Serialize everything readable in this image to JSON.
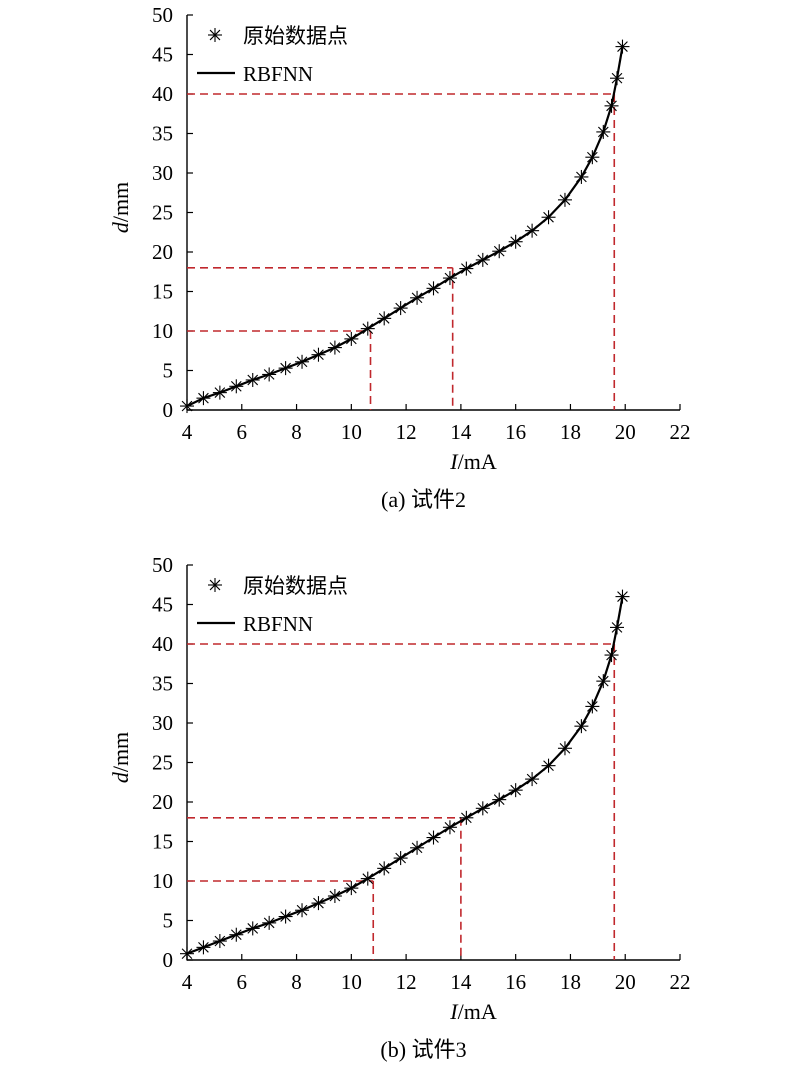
{
  "chart_data": [
    {
      "type": "line",
      "caption": "(a) 试件2",
      "xlabel": {
        "var": "I",
        "unit": "/mA"
      },
      "ylabel": {
        "var": "d",
        "unit": "/mm"
      },
      "xlim": [
        4,
        22
      ],
      "ylim": [
        0,
        50
      ],
      "xticks": [
        4,
        6,
        8,
        10,
        12,
        14,
        16,
        18,
        20,
        22
      ],
      "yticks": [
        0,
        5,
        10,
        15,
        20,
        25,
        30,
        35,
        40,
        45,
        50
      ],
      "legend": {
        "position": "top-left",
        "entries": [
          "原始数据点",
          "RBFNN"
        ]
      },
      "series": [
        {
          "name": "原始数据点",
          "marker": "asterisk",
          "color": "#000000",
          "x": [
            4.0,
            4.6,
            5.2,
            5.8,
            6.4,
            7.0,
            7.6,
            8.2,
            8.8,
            9.4,
            10.0,
            10.6,
            11.2,
            11.8,
            12.4,
            13.0,
            13.6,
            14.2,
            14.8,
            15.4,
            16.0,
            16.6,
            17.2,
            17.8,
            18.4,
            18.8,
            19.2,
            19.5,
            19.7,
            19.9
          ],
          "y": [
            0.5,
            1.5,
            2.2,
            3.0,
            3.8,
            4.5,
            5.3,
            6.1,
            7.0,
            7.9,
            9.0,
            10.3,
            11.6,
            12.9,
            14.2,
            15.4,
            16.7,
            17.9,
            19.0,
            20.1,
            21.3,
            22.7,
            24.4,
            26.6,
            29.5,
            32.0,
            35.2,
            38.5,
            42.0,
            46.0
          ]
        },
        {
          "name": "RBFNN",
          "marker": "none",
          "color": "#000000",
          "x": [
            4.0,
            4.6,
            5.2,
            5.8,
            6.4,
            7.0,
            7.6,
            8.2,
            8.8,
            9.4,
            10.0,
            10.6,
            11.2,
            11.8,
            12.4,
            13.0,
            13.6,
            14.2,
            14.8,
            15.4,
            16.0,
            16.6,
            17.2,
            17.8,
            18.4,
            18.8,
            19.2,
            19.5,
            19.7,
            19.9
          ],
          "y": [
            0.5,
            1.5,
            2.2,
            3.0,
            3.8,
            4.5,
            5.3,
            6.1,
            7.0,
            7.9,
            9.0,
            10.3,
            11.6,
            12.9,
            14.2,
            15.4,
            16.7,
            17.9,
            19.0,
            20.1,
            21.3,
            22.7,
            24.4,
            26.6,
            29.5,
            32.0,
            35.2,
            38.5,
            42.0,
            46.0
          ]
        }
      ],
      "annotations": [
        {
          "type": "dashed-guide",
          "color": "#c0282d",
          "x": 10.7,
          "y": 10
        },
        {
          "type": "dashed-guide",
          "color": "#c0282d",
          "x": 13.7,
          "y": 18
        },
        {
          "type": "dashed-guide",
          "color": "#c0282d",
          "x": 19.6,
          "y": 40
        }
      ]
    },
    {
      "type": "line",
      "caption": "(b) 试件3",
      "xlabel": {
        "var": "I",
        "unit": "/mA"
      },
      "ylabel": {
        "var": "d",
        "unit": "/mm"
      },
      "xlim": [
        4,
        22
      ],
      "ylim": [
        0,
        50
      ],
      "xticks": [
        4,
        6,
        8,
        10,
        12,
        14,
        16,
        18,
        20,
        22
      ],
      "yticks": [
        0,
        5,
        10,
        15,
        20,
        25,
        30,
        35,
        40,
        45,
        50
      ],
      "legend": {
        "position": "top-left",
        "entries": [
          "原始数据点",
          "RBFNN"
        ]
      },
      "series": [
        {
          "name": "原始数据点",
          "marker": "asterisk",
          "color": "#000000",
          "x": [
            4.0,
            4.6,
            5.2,
            5.8,
            6.4,
            7.0,
            7.6,
            8.2,
            8.8,
            9.4,
            10.0,
            10.6,
            11.2,
            11.8,
            12.4,
            13.0,
            13.6,
            14.2,
            14.8,
            15.4,
            16.0,
            16.6,
            17.2,
            17.8,
            18.4,
            18.8,
            19.2,
            19.5,
            19.7,
            19.9
          ],
          "y": [
            0.8,
            1.6,
            2.4,
            3.2,
            4.0,
            4.7,
            5.5,
            6.3,
            7.2,
            8.1,
            9.1,
            10.3,
            11.6,
            12.9,
            14.2,
            15.5,
            16.8,
            18.0,
            19.2,
            20.3,
            21.5,
            22.9,
            24.6,
            26.8,
            29.6,
            32.1,
            35.3,
            38.6,
            42.1,
            46.0
          ]
        },
        {
          "name": "RBFNN",
          "marker": "none",
          "color": "#000000",
          "x": [
            4.0,
            4.6,
            5.2,
            5.8,
            6.4,
            7.0,
            7.6,
            8.2,
            8.8,
            9.4,
            10.0,
            10.6,
            11.2,
            11.8,
            12.4,
            13.0,
            13.6,
            14.2,
            14.8,
            15.4,
            16.0,
            16.6,
            17.2,
            17.8,
            18.4,
            18.8,
            19.2,
            19.5,
            19.7,
            19.9
          ],
          "y": [
            0.8,
            1.6,
            2.4,
            3.2,
            4.0,
            4.7,
            5.5,
            6.3,
            7.2,
            8.1,
            9.1,
            10.3,
            11.6,
            12.9,
            14.2,
            15.5,
            16.8,
            18.0,
            19.2,
            20.3,
            21.5,
            22.9,
            24.6,
            26.8,
            29.6,
            32.1,
            35.3,
            38.6,
            42.1,
            46.0
          ]
        }
      ],
      "annotations": [
        {
          "type": "dashed-guide",
          "color": "#c0282d",
          "x": 10.8,
          "y": 10
        },
        {
          "type": "dashed-guide",
          "color": "#c0282d",
          "x": 14.0,
          "y": 18
        },
        {
          "type": "dashed-guide",
          "color": "#c0282d",
          "x": 19.6,
          "y": 40
        }
      ]
    }
  ]
}
